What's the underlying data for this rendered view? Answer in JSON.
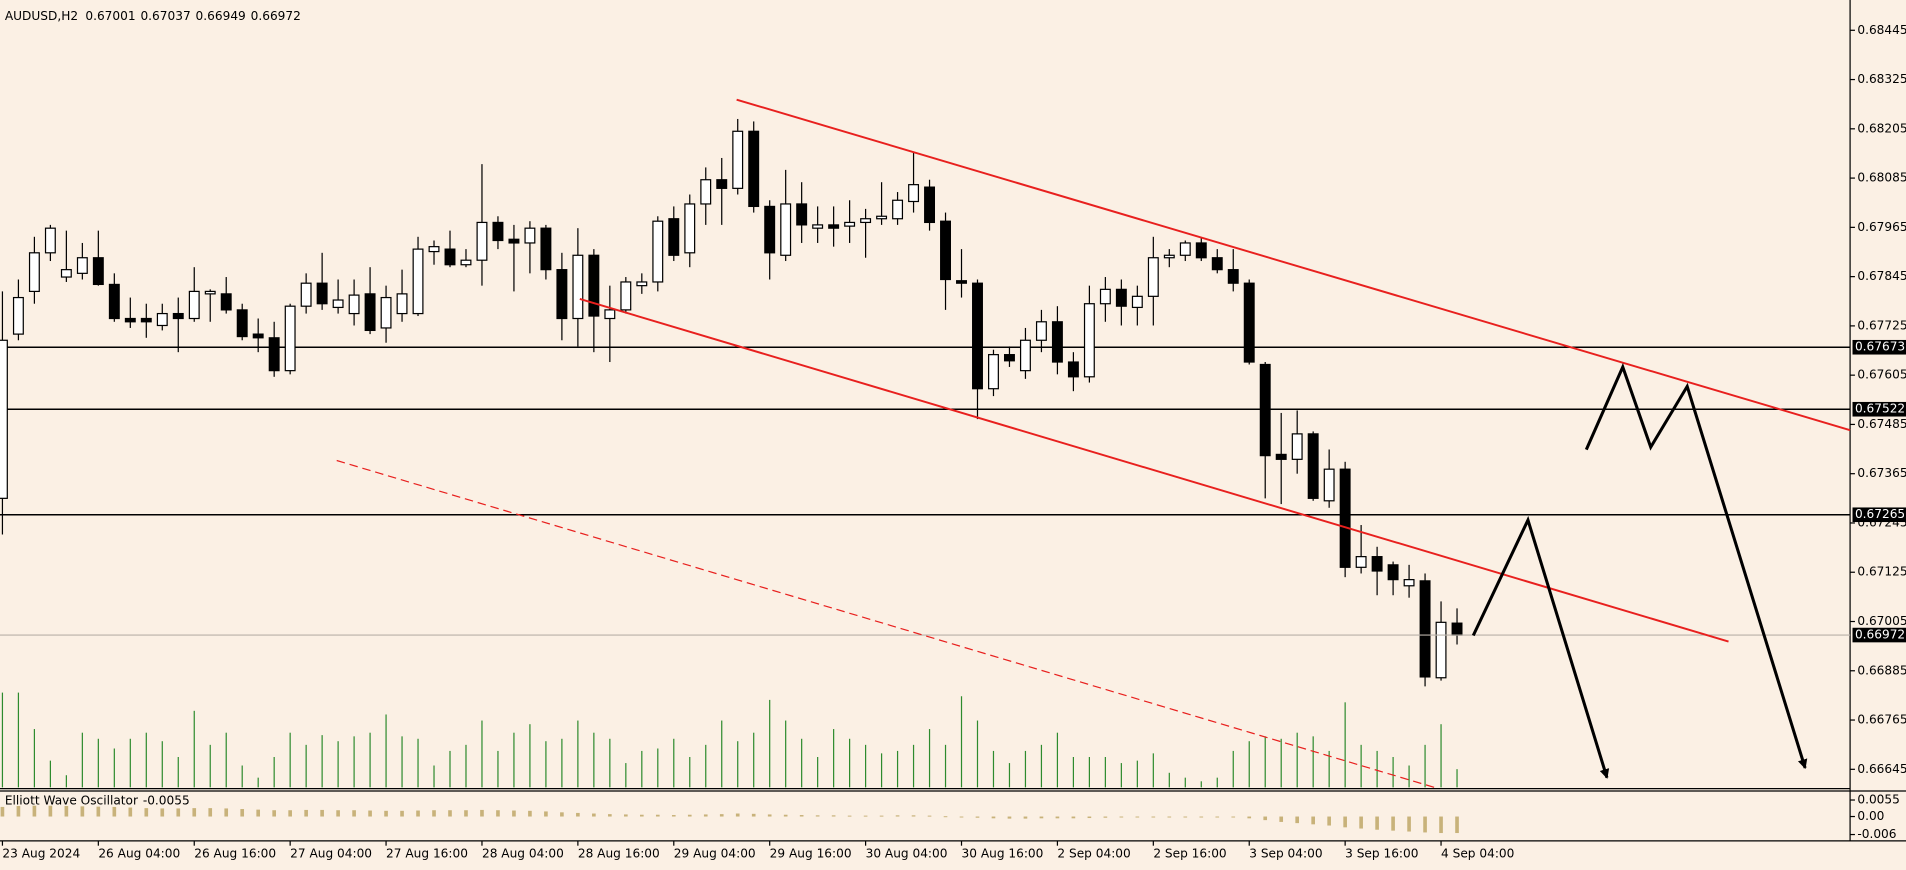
{
  "chart_data": {
    "type": "candlestick",
    "symbol": "AUDUSD,H2",
    "categories": [
      "23 Aug 2024",
      null,
      null,
      null,
      null,
      null,
      "26 Aug 04:00",
      null,
      null,
      null,
      null,
      null,
      "26 Aug 16:00",
      null,
      null,
      null,
      null,
      null,
      "27 Aug 04:00",
      null,
      null,
      null,
      null,
      null,
      "27 Aug 16:00",
      null,
      null,
      null,
      null,
      null,
      "28 Aug 04:00",
      null,
      null,
      null,
      null,
      null,
      "28 Aug 16:00",
      null,
      null,
      null,
      null,
      null,
      "29 Aug 04:00",
      null,
      null,
      null,
      null,
      null,
      "29 Aug 16:00",
      null,
      null,
      null,
      null,
      null,
      "30 Aug 04:00",
      null,
      null,
      null,
      null,
      null,
      "30 Aug 16:00",
      null,
      null,
      null,
      null,
      null,
      "2 Sep 04:00",
      null,
      null,
      null,
      null,
      null,
      "2 Sep 16:00",
      null,
      null,
      null,
      null,
      null,
      "3 Sep 04:00",
      null,
      null,
      null,
      null,
      null,
      "3 Sep 16:00",
      null,
      null,
      null,
      null,
      null,
      "4 Sep 04:00",
      null
    ],
    "open": [
      0.67305,
      0.67705,
      0.67809,
      0.67903,
      0.67844,
      0.67853,
      0.67891,
      0.67826,
      0.67743,
      0.67743,
      0.67726,
      0.67755,
      0.67743,
      0.67803,
      0.67803,
      0.67764,
      0.67705,
      0.67696,
      0.67616,
      0.67773,
      0.67829,
      0.6777,
      0.67755,
      0.67803,
      0.6772,
      0.67755,
      0.67755,
      0.67906,
      0.67912,
      0.67874,
      0.67885,
      0.67977,
      0.67936,
      0.67927,
      0.67963,
      0.67862,
      0.67743,
      0.67897,
      0.67743,
      0.67764,
      0.67823,
      0.67832,
      0.67986,
      0.67903,
      0.68022,
      0.68081,
      0.6806,
      0.68199,
      0.68016,
      0.67897,
      0.68022,
      0.67963,
      0.67971,
      0.67968,
      0.67977,
      0.67986,
      0.67986,
      0.68028,
      0.68063,
      0.6798,
      0.67835,
      0.67829,
      0.67572,
      0.67655,
      0.67616,
      0.6769,
      0.67735,
      0.67637,
      0.67601,
      0.67779,
      0.67814,
      0.6777,
      0.67797,
      0.67891,
      0.67897,
      0.67927,
      0.67891,
      0.67862,
      0.67829,
      0.67631,
      0.67412,
      0.674,
      0.67462,
      0.67299,
      0.67376,
      0.67137,
      0.67163,
      0.67143,
      0.67092,
      0.67104,
      0.66868,
      0.67001
    ],
    "high": [
      0.67809,
      0.67838,
      0.67942,
      0.67971,
      0.67957,
      0.67927,
      0.67957,
      0.67853,
      0.67794,
      0.67779,
      0.67779,
      0.67794,
      0.67868,
      0.67814,
      0.67844,
      0.67779,
      0.67743,
      0.67735,
      0.67779,
      0.67853,
      0.67903,
      0.67838,
      0.67838,
      0.67868,
      0.67823,
      0.67862,
      0.67942,
      0.67933,
      0.67957,
      0.67912,
      0.68119,
      0.67992,
      0.67971,
      0.6798,
      0.67971,
      0.67903,
      0.67963,
      0.67912,
      0.67823,
      0.67844,
      0.67853,
      0.67992,
      0.68016,
      0.68045,
      0.68111,
      0.68134,
      0.68229,
      0.68223,
      0.68031,
      0.68105,
      0.68075,
      0.68016,
      0.68016,
      0.68031,
      0.6801,
      0.68075,
      0.68051,
      0.68149,
      0.68081,
      0.68001,
      0.67912,
      0.67838,
      0.67667,
      0.67675,
      0.6772,
      0.67764,
      0.67773,
      0.67661,
      0.67823,
      0.67844,
      0.67838,
      0.67823,
      0.67942,
      0.67912,
      0.67933,
      0.67939,
      0.67912,
      0.67912,
      0.67838,
      0.67637,
      0.67513,
      0.67519,
      0.67468,
      0.67424,
      0.67394,
      0.6724,
      0.67187,
      0.67151,
      0.67143,
      0.67122,
      0.67054,
      0.67037
    ],
    "low": [
      0.67217,
      0.6769,
      0.67779,
      0.67883,
      0.67832,
      0.67838,
      0.67823,
      0.67735,
      0.6772,
      0.67696,
      0.67714,
      0.67661,
      0.67735,
      0.67735,
      0.67755,
      0.6769,
      0.67661,
      0.67601,
      0.67607,
      0.67755,
      0.67764,
      0.67755,
      0.67726,
      0.67705,
      0.67684,
      0.67735,
      0.67749,
      0.67874,
      0.67868,
      0.67868,
      0.67823,
      0.67912,
      0.67809,
      0.67853,
      0.67838,
      0.6769,
      0.67675,
      0.67661,
      0.67637,
      0.67755,
      0.67803,
      0.67809,
      0.67883,
      0.67868,
      0.67971,
      0.67971,
      0.68045,
      0.68001,
      0.67838,
      0.67883,
      0.67927,
      0.67927,
      0.67918,
      0.67927,
      0.67891,
      0.67971,
      0.67971,
      0.68001,
      0.67957,
      0.67764,
      0.67794,
      0.67498,
      0.67554,
      0.67625,
      0.67596,
      0.67661,
      0.67607,
      0.67566,
      0.67587,
      0.67735,
      0.67726,
      0.67726,
      0.67726,
      0.67868,
      0.67883,
      0.67883,
      0.67853,
      0.67809,
      0.67631,
      0.67305,
      0.67291,
      0.67365,
      0.67299,
      0.67282,
      0.67113,
      0.67122,
      0.67069,
      0.67069,
      0.67063,
      0.66847,
      0.66861,
      0.66949
    ],
    "close": [
      0.6769,
      0.67794,
      0.67903,
      0.67963,
      0.67862,
      0.67891,
      0.67826,
      0.67743,
      0.67735,
      0.67735,
      0.67755,
      0.67743,
      0.67809,
      0.67809,
      0.67764,
      0.67699,
      0.67696,
      0.67616,
      0.67773,
      0.67829,
      0.67779,
      0.67788,
      0.678,
      0.67714,
      0.67794,
      0.67803,
      0.67912,
      0.67918,
      0.67874,
      0.67885,
      0.67977,
      0.67933,
      0.67927,
      0.67963,
      0.67862,
      0.67743,
      0.67897,
      0.67749,
      0.67764,
      0.67832,
      0.67832,
      0.6798,
      0.67897,
      0.68022,
      0.68081,
      0.6806,
      0.68199,
      0.68016,
      0.67903,
      0.68022,
      0.67971,
      0.67971,
      0.67963,
      0.67977,
      0.67986,
      0.67992,
      0.68031,
      0.68069,
      0.67977,
      0.67838,
      0.67829,
      0.67572,
      0.67655,
      0.6764,
      0.6769,
      0.67735,
      0.67637,
      0.67601,
      0.67779,
      0.67814,
      0.67773,
      0.67797,
      0.67891,
      0.67897,
      0.67927,
      0.67891,
      0.67862,
      0.67829,
      0.67637,
      0.67409,
      0.674,
      0.67462,
      0.67305,
      0.67376,
      0.67137,
      0.67163,
      0.67128,
      0.67107,
      0.67107,
      0.6687,
      0.67003,
      0.66972
    ],
    "volume": [
      78,
      78,
      48,
      22,
      10,
      45,
      40,
      32,
      40,
      45,
      38,
      25,
      63,
      35,
      45,
      18,
      8,
      25,
      45,
      35,
      43,
      38,
      42,
      45,
      60,
      42,
      40,
      18,
      30,
      35,
      55,
      30,
      45,
      52,
      38,
      40,
      55,
      45,
      40,
      20,
      30,
      32,
      40,
      25,
      35,
      55,
      38,
      45,
      72,
      55,
      40,
      25,
      48,
      40,
      35,
      28,
      30,
      35,
      48,
      35,
      75,
      55,
      30,
      20,
      30,
      35,
      45,
      25,
      25,
      25,
      20,
      22,
      28,
      12,
      8,
      5,
      8,
      30,
      38,
      42,
      40,
      45,
      42,
      30,
      70,
      35,
      30,
      25,
      18,
      35,
      52,
      15
    ],
    "ylim": [
      0.66601,
      0.68501
    ],
    "yticks": [
      0.68445,
      0.68325,
      0.68205,
      0.68085,
      0.67965,
      0.67845,
      0.67725,
      0.67605,
      0.67485,
      0.67365,
      0.67245,
      0.67125,
      0.67005,
      0.66885,
      0.66765,
      0.66645
    ],
    "levels": [
      0.67673,
      0.67522,
      0.67265
    ],
    "oscillator": {
      "name": "Elliott Wave Oscillator",
      "color": "#c8b27a",
      "ylim": [
        -0.0081,
        0.0085
      ],
      "yticks": [
        0.0055,
        {
          "value": 0,
          "label": "0.00"
        },
        -0.006
      ],
      "values": [
        0.0032,
        0.0035,
        0.0036,
        0.0036,
        0.0035,
        0.0034,
        0.0033,
        0.0032,
        0.003,
        0.0028,
        0.0027,
        0.0027,
        0.0028,
        0.0028,
        0.0027,
        0.0025,
        0.0023,
        0.0021,
        0.0021,
        0.0022,
        0.0022,
        0.0021,
        0.0021,
        0.002,
        0.0019,
        0.0019,
        0.002,
        0.0021,
        0.0021,
        0.0021,
        0.0022,
        0.0021,
        0.002,
        0.0019,
        0.0017,
        0.0014,
        0.0012,
        0.001,
        0.0008,
        0.0007,
        0.0006,
        0.0006,
        0.0005,
        0.0006,
        0.0007,
        0.0008,
        0.001,
        0.0009,
        0.0007,
        0.0006,
        0.0005,
        0.0004,
        0.0004,
        0.0003,
        0.0003,
        0.0003,
        0.0004,
        0.0004,
        0.0003,
        0.0001,
        -0.0001,
        -0.0004,
        -0.0006,
        -0.0007,
        -0.0007,
        -0.0006,
        -0.0006,
        -0.0006,
        -0.0005,
        -0.0004,
        -0.0003,
        -0.0003,
        -0.0002,
        -0.0001,
        -0.0001,
        -0.0001,
        -0.0002,
        -0.0003,
        -0.0006,
        -0.0012,
        -0.0018,
        -0.0022,
        -0.0026,
        -0.003,
        -0.0036,
        -0.004,
        -0.0044,
        -0.0047,
        -0.005,
        -0.0053,
        -0.0055,
        -0.0055
      ]
    },
    "bull_color": "#ffffff",
    "bear_color": "#000000",
    "volume_color": "#2e8b2e",
    "background": "#fbf0e4"
  }
}
